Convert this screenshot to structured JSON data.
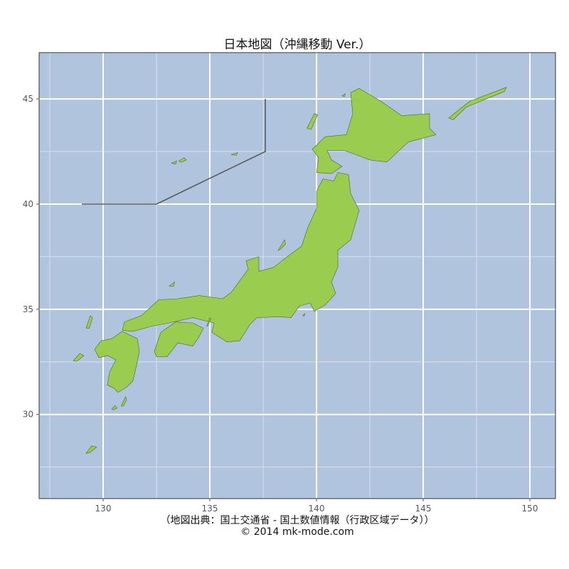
{
  "title": "日本地図（沖縄移動 Ver.）",
  "credits": {
    "source": "（地図出典：国土交通省 - 国土数値情報（行政区域データ））",
    "copyright": "© 2014 mk-mode.com"
  },
  "colors": {
    "sea": "#b0c4de",
    "land": "#9acd4f",
    "border": "#4a6a2a",
    "grid_major": "#ffffff",
    "grid_minor": "#d6e1ee",
    "frame": "#333333",
    "okinawa_line": "#555555"
  },
  "axes": {
    "xlim": [
      127.0,
      151.2
    ],
    "ylim": [
      26.0,
      47.2
    ],
    "x_ticks": [
      130,
      135,
      140,
      145,
      150
    ],
    "y_ticks": [
      30,
      35,
      40,
      45
    ],
    "x_minor": [
      127.5,
      132.5,
      137.5,
      142.5,
      147.5
    ],
    "y_minor": [
      27.5,
      32.5,
      37.5,
      42.5
    ]
  },
  "okinawa_boundary_line": [
    [
      129.0,
      40.0
    ],
    [
      132.5,
      40.0
    ],
    [
      137.6,
      42.5
    ],
    [
      137.6,
      45.0
    ]
  ]
}
